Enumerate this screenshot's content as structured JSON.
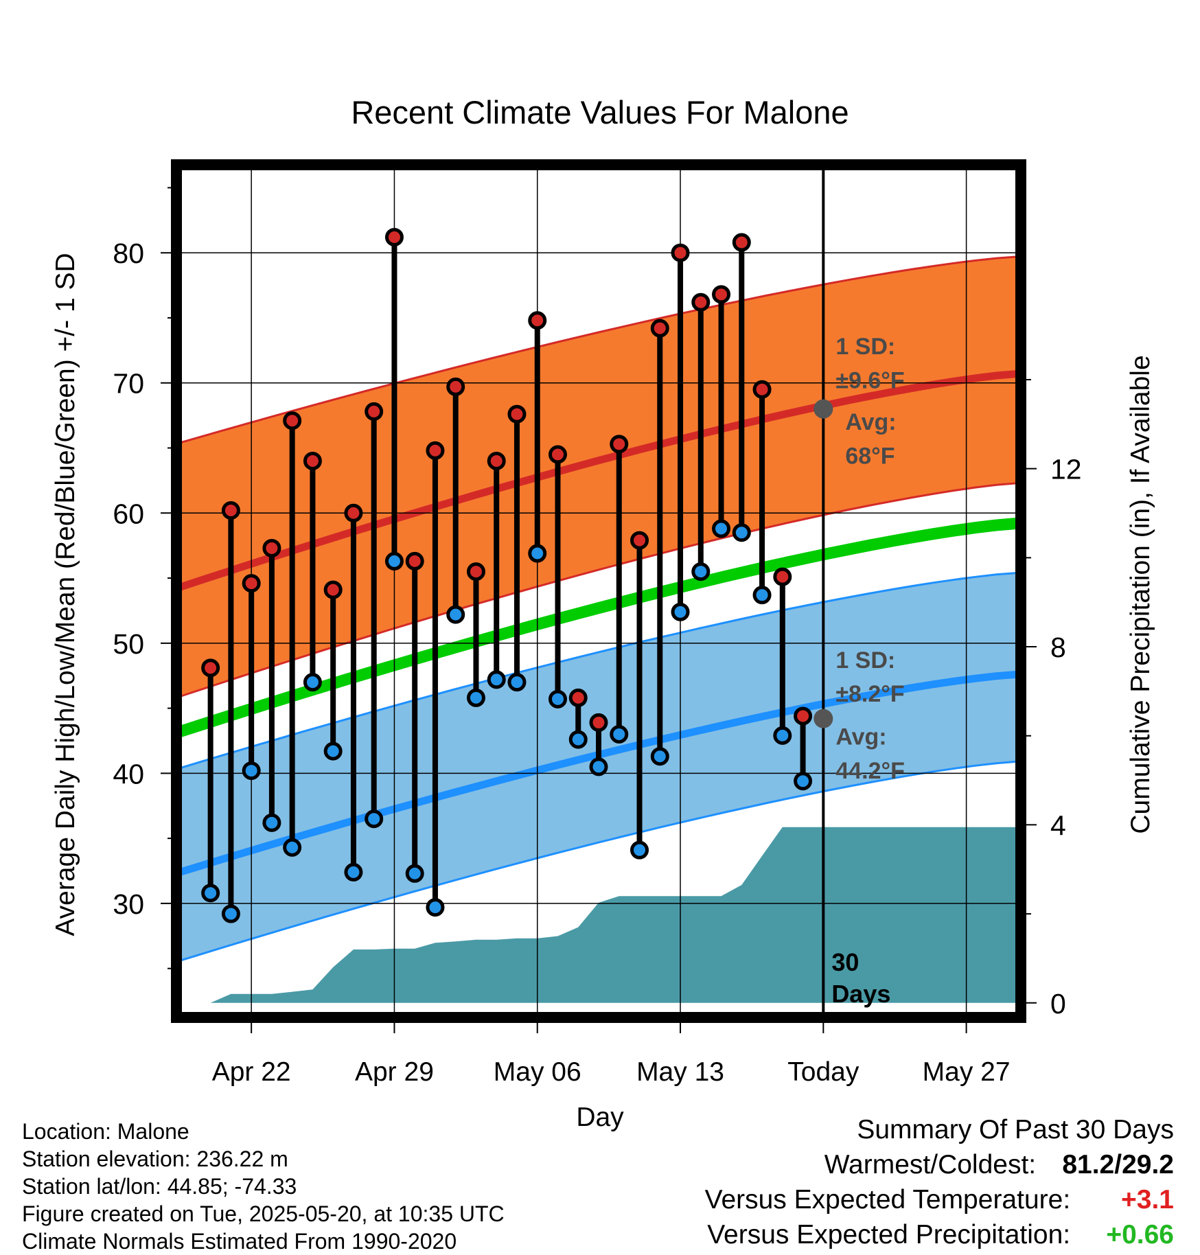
{
  "chart_data": {
    "type": "line",
    "title": "Recent Climate Values For Malone",
    "xlabel": "Day",
    "ylabel": "Average Daily High/Low/Mean (Red/Blue/Green) +/- 1 SD",
    "y2label": "Cumulative Precipitation (in), If Available",
    "x_tick_labels": [
      "Apr 22",
      "Apr 29",
      "May 06",
      "May 13",
      "Today",
      "May 27"
    ],
    "x_tick_days": [
      22,
      29,
      36,
      43,
      50,
      57
    ],
    "xlim_days": [
      18.5,
      59.5
    ],
    "ylim": [
      21.5,
      86.5
    ],
    "y_ticks": [
      30,
      40,
      50,
      60,
      70,
      80
    ],
    "y2lim": [
      -0.25,
      18.75
    ],
    "y2_ticks": [
      0,
      4,
      8,
      12
    ],
    "today_day": 50,
    "days_label": "30 Days",
    "normals": {
      "days": [
        18.5,
        59.5
      ],
      "high_avg": [
        54.3,
        70.7
      ],
      "high_upper": [
        65.4,
        79.7
      ],
      "high_lower": [
        45.9,
        62.3
      ],
      "mean_avg": [
        43.2,
        59.2
      ],
      "low_avg": [
        32.4,
        47.6
      ],
      "low_upper": [
        40.4,
        55.4
      ],
      "low_lower": [
        25.6,
        40.9
      ]
    },
    "high_sd_label": "1 SD:",
    "high_sd_value": "±9.6°F",
    "high_avg_label": "Avg:",
    "high_avg_value": "68°F",
    "low_sd_label": "1 SD:",
    "low_sd_value": "±8.2°F",
    "low_avg_label": "Avg:",
    "low_avg_value": "44.2°F",
    "today_high_avg": 68,
    "today_low_avg": 44.2,
    "days": [
      20,
      21,
      22,
      23,
      24,
      25,
      26,
      27,
      28,
      29,
      30,
      31,
      32,
      33,
      34,
      35,
      36,
      37,
      38,
      39,
      40,
      41,
      42,
      43,
      44,
      45,
      46,
      47,
      48,
      49
    ],
    "highs": [
      48.1,
      60.2,
      54.6,
      57.3,
      67.1,
      64.0,
      54.1,
      60.0,
      67.8,
      81.2,
      56.3,
      64.8,
      69.7,
      55.5,
      64.0,
      67.6,
      74.8,
      64.5,
      45.8,
      43.9,
      65.3,
      57.9,
      74.2,
      80.0,
      76.2,
      76.8,
      80.8,
      69.5,
      55.1,
      44.4
    ],
    "lows": [
      30.8,
      29.2,
      40.2,
      36.2,
      34.3,
      47.0,
      41.7,
      32.4,
      36.5,
      56.3,
      32.3,
      29.7,
      52.2,
      45.8,
      47.2,
      47.0,
      56.9,
      45.7,
      42.6,
      40.5,
      43.0,
      34.1,
      41.3,
      52.4,
      55.5,
      58.8,
      58.5,
      53.7,
      42.9,
      39.4
    ],
    "precip_days": [
      19,
      20,
      21,
      22,
      23,
      24,
      25,
      26,
      27,
      28,
      29,
      30,
      31,
      32,
      33,
      34,
      35,
      36,
      37,
      38,
      39,
      40,
      41,
      42,
      43,
      44,
      45,
      46,
      47,
      48,
      49,
      50,
      59
    ],
    "precip_cum": [
      0,
      0,
      0.2,
      0.2,
      0.2,
      0.25,
      0.3,
      0.8,
      1.2,
      1.2,
      1.22,
      1.22,
      1.35,
      1.38,
      1.42,
      1.42,
      1.45,
      1.45,
      1.5,
      1.7,
      2.25,
      2.4,
      2.4,
      2.4,
      2.4,
      2.4,
      2.4,
      2.65,
      3.3,
      3.95,
      3.95,
      3.95,
      3.95
    ]
  },
  "info": {
    "location": "Location: Malone",
    "elevation": "Station elevation: 236.22 m",
    "latlon": "Station lat/lon: 44.85; -74.33",
    "created": "Figure created on Tue, 2025-05-20, at 10:35 UTC",
    "normals": "Climate Normals Estimated From 1990-2020"
  },
  "summary": {
    "title": "Summary Of Past 30 Days",
    "warmest_label": "Warmest/Coldest:",
    "warmest_value": "81.2/29.2",
    "temp_label": "Versus Expected Temperature:",
    "temp_value": "+3.1",
    "precip_label": "Versus Expected Precipitation:",
    "precip_value": "+0.66"
  },
  "colors": {
    "high_band": "#f57a2e",
    "high_line": "#d42a27",
    "low_band": "#82bfe6",
    "low_line": "#1e90ff",
    "mean_line": "#00cc00",
    "precip": "#4a9aa6",
    "high_marker": "#d42a27",
    "low_marker": "#2393e8",
    "annotation": "#4a4a4a"
  }
}
